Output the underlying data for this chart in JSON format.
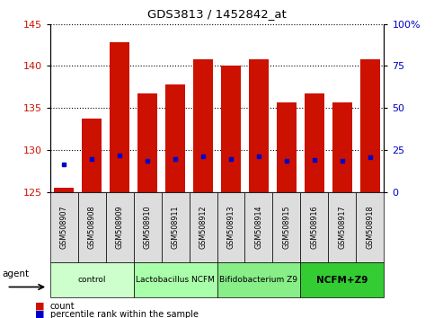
{
  "title": "GDS3813 / 1452842_at",
  "categories": [
    "GSM508907",
    "GSM508908",
    "GSM508909",
    "GSM508910",
    "GSM508911",
    "GSM508912",
    "GSM508913",
    "GSM508914",
    "GSM508915",
    "GSM508916",
    "GSM508917",
    "GSM508918"
  ],
  "bar_values": [
    125.5,
    133.8,
    142.8,
    136.7,
    137.8,
    140.8,
    140.0,
    140.8,
    135.7,
    136.7,
    135.7,
    140.8
  ],
  "percentile_values": [
    128.3,
    129.0,
    129.4,
    128.8,
    129.0,
    129.3,
    129.0,
    129.3,
    128.8,
    128.9,
    128.8,
    129.2
  ],
  "y_min": 125,
  "y_max": 145,
  "y_ticks": [
    125,
    130,
    135,
    140,
    145
  ],
  "bar_color": "#cc1100",
  "percentile_color": "#0000cc",
  "agent_groups": [
    {
      "label": "control",
      "start": 0,
      "end": 3,
      "color": "#ccffcc"
    },
    {
      "label": "Lactobacillus NCFM",
      "start": 3,
      "end": 6,
      "color": "#aaffaa"
    },
    {
      "label": "Bifidobacterium Z9",
      "start": 6,
      "end": 9,
      "color": "#88ee88"
    },
    {
      "label": "NCFM+Z9",
      "start": 9,
      "end": 12,
      "color": "#33cc33"
    }
  ],
  "legend_count_color": "#cc1100",
  "legend_percentile_color": "#0000cc",
  "tick_label_color_left": "#cc1100",
  "tick_label_color_right": "#0000cc",
  "tick_bg_color": "#dddddd",
  "bar_width": 0.7
}
